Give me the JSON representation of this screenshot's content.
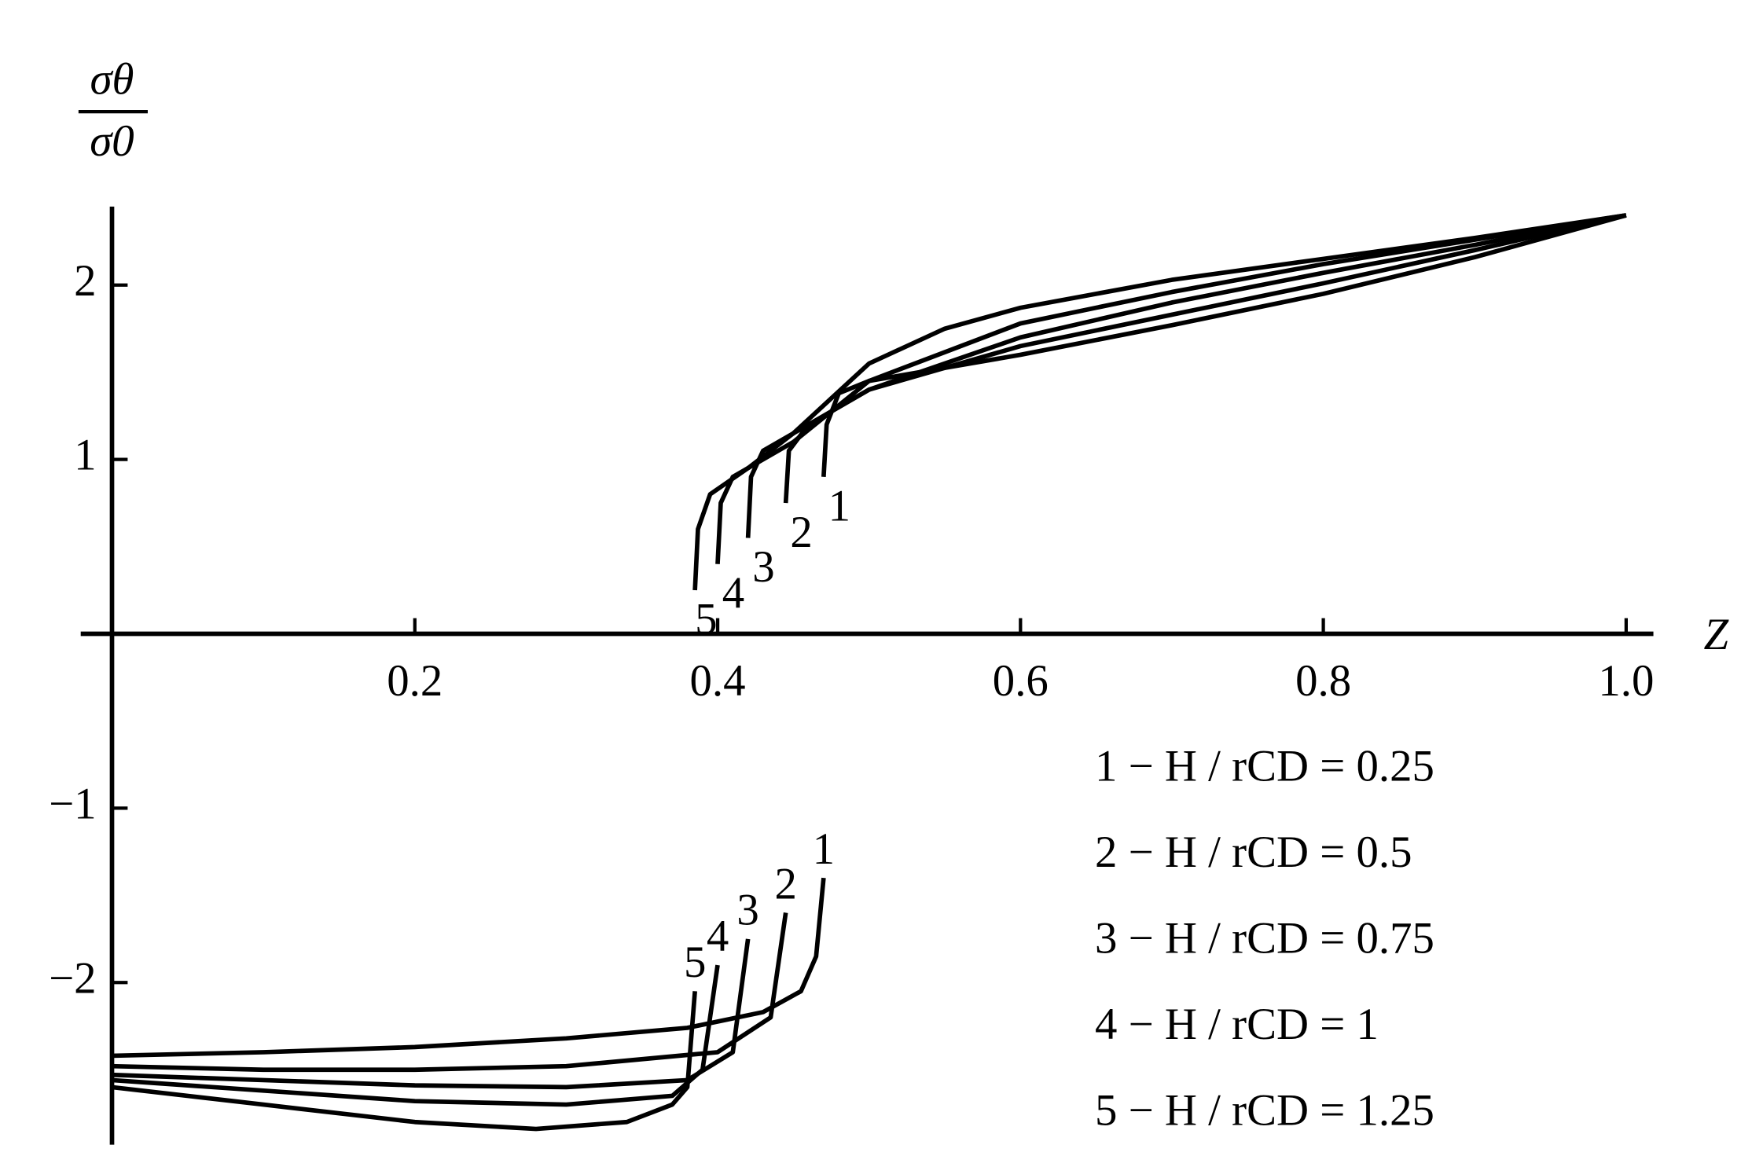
{
  "chart_data": {
    "type": "line",
    "y_label_numerator": "σθ",
    "y_label_denominator": "σ0",
    "x_label": "Z",
    "xlim": [
      0,
      1.018
    ],
    "ylim": [
      -2.93,
      2.45
    ],
    "xticks": [
      0.2,
      0.4,
      0.6,
      0.8,
      {
        "value": 1,
        "label": "1.0"
      }
    ],
    "yticks": [
      {
        "value": -2,
        "label": "−2"
      },
      {
        "value": -1,
        "label": "−1"
      },
      1,
      2
    ],
    "series": [
      {
        "name": "1 − H / rCD = 0.25",
        "label": "1",
        "color": "#000000",
        "x": [
          0,
          0.1,
          0.2,
          0.3,
          0.38,
          0.43,
          0.455,
          0.465,
          0.47,
          null,
          0.47,
          0.472,
          0.48,
          0.5,
          0.6,
          0.7,
          0.8,
          0.9,
          1
        ],
        "values": [
          -2.42,
          -2.4,
          -2.37,
          -2.32,
          -2.26,
          -2.17,
          -2.05,
          -1.85,
          -1.4,
          null,
          0.9,
          1.2,
          1.38,
          1.45,
          1.6,
          1.77,
          1.95,
          2.16,
          2.4
        ]
      },
      {
        "name": "2 − H / rCD = 0.5",
        "label": "2",
        "color": "#000000",
        "x": [
          0,
          0.1,
          0.2,
          0.3,
          0.4,
          0.435,
          0.445,
          null,
          0.445,
          0.447,
          0.46,
          0.5,
          0.6,
          0.7,
          0.8,
          0.9,
          1
        ],
        "values": [
          -2.48,
          -2.5,
          -2.5,
          -2.48,
          -2.4,
          -2.2,
          -1.6,
          null,
          0.75,
          1.05,
          1.2,
          1.4,
          1.65,
          1.83,
          2.01,
          2.2,
          2.4
        ]
      },
      {
        "name": "3 − H / rCD = 0.75",
        "label": "3",
        "color": "#000000",
        "x": [
          0,
          0.1,
          0.2,
          0.3,
          0.38,
          0.41,
          0.42,
          null,
          0.42,
          0.422,
          0.43,
          0.46,
          0.5,
          0.6,
          0.7,
          0.8,
          0.9,
          1
        ],
        "values": [
          -2.53,
          -2.56,
          -2.59,
          -2.6,
          -2.56,
          -2.4,
          -1.75,
          null,
          0.55,
          0.9,
          1.05,
          1.2,
          1.4,
          1.7,
          1.9,
          2.07,
          2.23,
          2.4
        ]
      },
      {
        "name": "4 − H / rCD = 1",
        "label": "4",
        "color": "#000000",
        "x": [
          0,
          0.1,
          0.2,
          0.3,
          0.37,
          0.39,
          0.4,
          null,
          0.4,
          0.402,
          0.41,
          0.45,
          0.5,
          0.6,
          0.7,
          0.8,
          0.9,
          1
        ],
        "values": [
          -2.56,
          -2.62,
          -2.68,
          -2.7,
          -2.65,
          -2.5,
          -1.9,
          null,
          0.4,
          0.75,
          0.9,
          1.1,
          1.45,
          1.78,
          1.96,
          2.12,
          2.26,
          2.4
        ]
      },
      {
        "name": "5 − H / rCD = 1.25",
        "label": "5",
        "color": "#000000",
        "x": [
          0,
          0.1,
          0.2,
          0.28,
          0.34,
          0.37,
          0.38,
          0.385,
          null,
          0.385,
          0.387,
          0.395,
          0.42,
          0.45,
          0.5,
          0.55,
          0.6,
          0.7,
          0.8,
          0.9,
          1
        ],
        "values": [
          -2.6,
          -2.7,
          -2.8,
          -2.84,
          -2.8,
          -2.7,
          -2.6,
          -2.05,
          null,
          0.25,
          0.6,
          0.8,
          0.95,
          1.15,
          1.55,
          1.75,
          1.87,
          2.03,
          2.15,
          2.27,
          2.4
        ]
      }
    ]
  }
}
